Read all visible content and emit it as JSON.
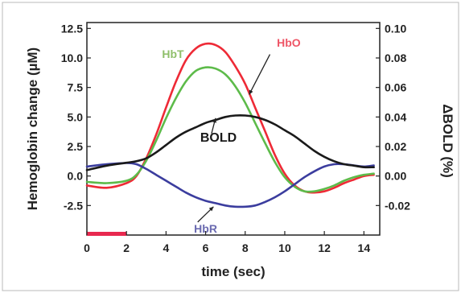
{
  "chart_data": {
    "type": "line",
    "xlabel": "time (sec)",
    "ylabel_left": "Hemoglobin change (µM)",
    "ylabel_right": "ΔBOLD (%)",
    "xlim": [
      0,
      14.8
    ],
    "ylim_left": [
      -5,
      13
    ],
    "ylim_right": [
      -0.04,
      0.104
    ],
    "x_ticks": [
      0,
      2,
      4,
      6,
      8,
      10,
      12,
      14
    ],
    "x_tick_labels": [
      "0",
      "2",
      "4",
      "6",
      "8",
      "10",
      "12",
      "14"
    ],
    "y_ticks_left": [
      -2.5,
      0,
      2.5,
      5,
      7.5,
      10,
      12.5
    ],
    "y_tick_labels_left": [
      "-2.5",
      "0.0",
      "2.5",
      "5.0",
      "7.5",
      "10.0",
      "12.5"
    ],
    "y_ticks_right": [
      -0.02,
      0,
      0.02,
      0.04,
      0.06,
      0.08,
      0.1
    ],
    "y_tick_labels_right": [
      "-0.02",
      "0.00",
      "0.02",
      "0.04",
      "0.06",
      "0.08",
      "0.10"
    ],
    "grid": false,
    "stimulus": {
      "start": 0,
      "end": 2,
      "y": -4.9,
      "color": "#e8294f"
    },
    "series": [
      {
        "name": "HbO",
        "axis": "left",
        "color": "#ee2a36",
        "x": [
          0,
          1,
          2,
          2.5,
          3,
          3.5,
          4,
          4.5,
          5,
          5.5,
          6,
          6.5,
          7,
          7.5,
          8,
          8.5,
          9,
          9.5,
          10,
          10.5,
          11,
          11.5,
          12,
          12.5,
          13,
          13.5,
          14,
          14.5
        ],
        "y": [
          -0.8,
          -1.0,
          -0.6,
          0.0,
          1.5,
          3.5,
          5.8,
          8.0,
          9.8,
          10.8,
          11.2,
          11.1,
          10.5,
          9.3,
          7.8,
          5.8,
          3.8,
          1.8,
          0.2,
          -0.8,
          -1.3,
          -1.4,
          -1.3,
          -1.0,
          -0.6,
          -0.3,
          0.0,
          0.1
        ]
      },
      {
        "name": "HbT",
        "axis": "left",
        "color": "#5dbb4a",
        "x": [
          0,
          1,
          2,
          2.5,
          3,
          3.5,
          4,
          4.5,
          5,
          5.5,
          6,
          6.5,
          7,
          7.5,
          8,
          8.5,
          9,
          9.5,
          10,
          10.5,
          11,
          11.5,
          12,
          12.5,
          13,
          13.5,
          14,
          14.5
        ],
        "y": [
          -0.5,
          -0.6,
          -0.4,
          0.1,
          1.3,
          3.0,
          4.9,
          6.6,
          8.0,
          8.9,
          9.2,
          9.1,
          8.6,
          7.6,
          6.2,
          4.5,
          2.8,
          1.2,
          -0.1,
          -0.9,
          -1.3,
          -1.3,
          -1.1,
          -0.8,
          -0.4,
          -0.1,
          0.1,
          0.2
        ]
      },
      {
        "name": "HbR",
        "axis": "left",
        "color": "#3b3d9e",
        "x": [
          0,
          1,
          2,
          2.5,
          3,
          3.5,
          4,
          4.5,
          5,
          5.5,
          6,
          6.5,
          7,
          7.5,
          8,
          8.5,
          9,
          9.5,
          10,
          10.5,
          11,
          11.5,
          12,
          12.5,
          13,
          13.5,
          14,
          14.5
        ],
        "y": [
          0.8,
          1.0,
          1.1,
          1.0,
          0.6,
          0.1,
          -0.4,
          -0.9,
          -1.4,
          -1.8,
          -2.1,
          -2.3,
          -2.5,
          -2.6,
          -2.6,
          -2.5,
          -2.2,
          -1.8,
          -1.3,
          -0.7,
          -0.1,
          0.4,
          0.8,
          1.0,
          1.0,
          0.9,
          0.8,
          0.9
        ]
      },
      {
        "name": "BOLD",
        "axis": "right",
        "color": "#1a1a1a",
        "x": [
          0,
          1,
          2,
          2.5,
          3,
          3.5,
          4,
          4.5,
          5,
          5.5,
          6,
          6.5,
          7,
          7.5,
          8,
          8.5,
          9,
          9.5,
          10,
          10.5,
          11,
          11.5,
          12,
          12.5,
          13,
          13.5,
          14,
          14.5
        ],
        "y": [
          0.004,
          0.007,
          0.009,
          0.01,
          0.012,
          0.016,
          0.021,
          0.026,
          0.03,
          0.033,
          0.036,
          0.038,
          0.04,
          0.041,
          0.041,
          0.04,
          0.038,
          0.035,
          0.031,
          0.027,
          0.022,
          0.017,
          0.013,
          0.01,
          0.008,
          0.007,
          0.006,
          0.006
        ]
      }
    ],
    "labels": [
      {
        "text": "HbT",
        "color": "#8fbf6a",
        "x": 4.35,
        "y": 10.0,
        "axis": "left"
      },
      {
        "text": "HbO",
        "color": "#ee5566",
        "x": 10.2,
        "y": 10.95,
        "axis": "left"
      },
      {
        "text": "BOLD",
        "color": "#1a1a1a",
        "x": 6.65,
        "y": 2.9,
        "axis": "left"
      },
      {
        "text": "HbR",
        "color": "#6a6ab0",
        "x": 6.0,
        "y": -4.8,
        "axis": "left"
      }
    ],
    "annotation_arrows": [
      {
        "from": [
          9.25,
          10.3
        ],
        "to": [
          8.2,
          6.9
        ]
      },
      {
        "from": [
          6.3,
          3.6
        ],
        "to": [
          6.5,
          4.9
        ]
      },
      {
        "from": [
          5.6,
          -3.9
        ],
        "to": [
          6.4,
          -2.6
        ]
      }
    ]
  }
}
